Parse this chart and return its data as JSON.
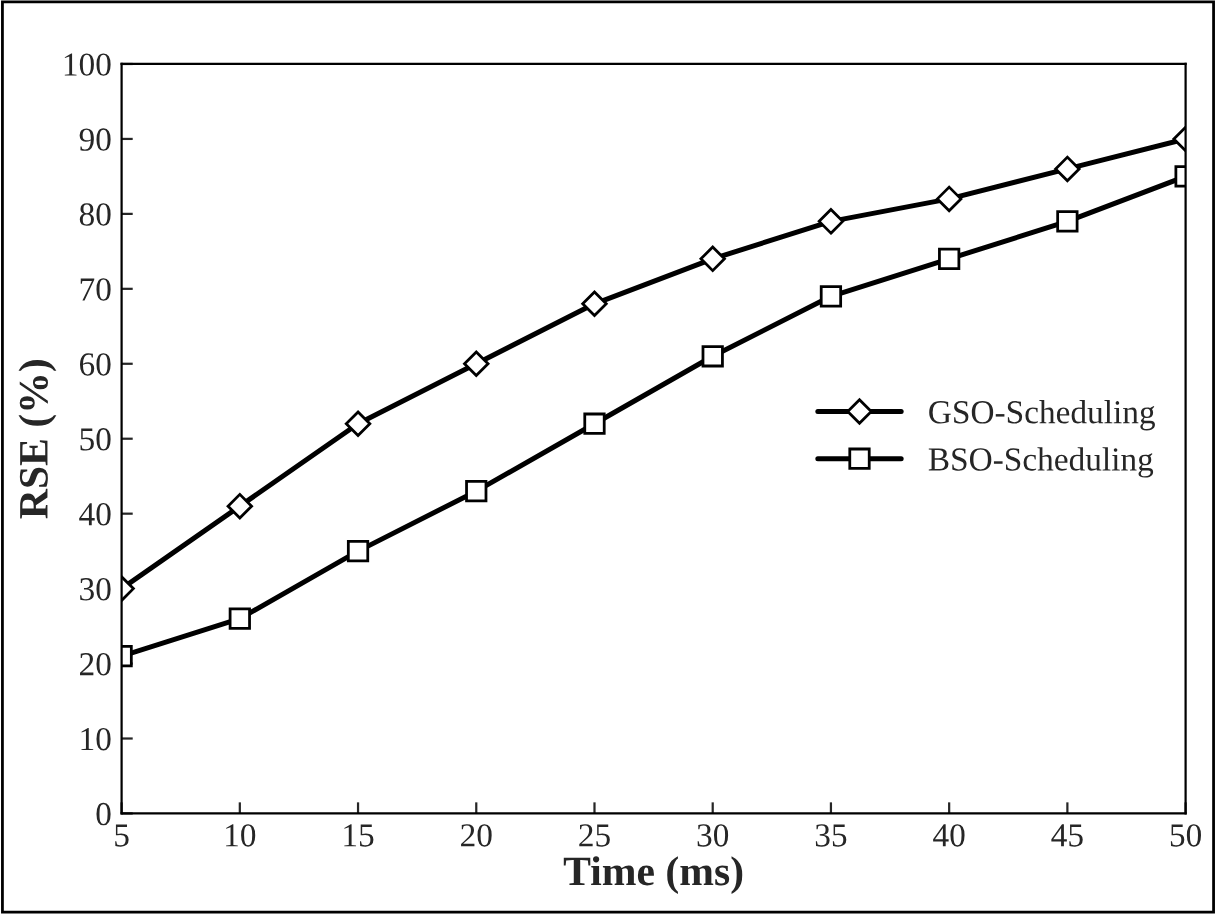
{
  "chart_data": {
    "type": "line",
    "xlabel": "Time (ms)",
    "ylabel": "RSE (%)",
    "x": [
      5,
      10,
      15,
      20,
      25,
      30,
      35,
      40,
      45,
      50
    ],
    "series": [
      {
        "name": "GSO-Scheduling",
        "color": "#000000",
        "marker": "diamond",
        "values": [
          30,
          41,
          52,
          60,
          68,
          74,
          79,
          82,
          86,
          90
        ]
      },
      {
        "name": "BSO-Scheduling",
        "color": "#000000",
        "marker": "square",
        "values": [
          21,
          26,
          35,
          43,
          52,
          61,
          69,
          74,
          79,
          85
        ]
      }
    ],
    "xlim": [
      5,
      50
    ],
    "xticks": [
      5,
      10,
      15,
      20,
      25,
      30,
      35,
      40,
      45,
      50
    ],
    "ylim": [
      0,
      100
    ],
    "yticks": [
      0,
      10,
      20,
      30,
      40,
      50,
      60,
      70,
      80,
      90,
      100
    ],
    "grid": false,
    "legend": "center right",
    "line_style": "solid"
  }
}
